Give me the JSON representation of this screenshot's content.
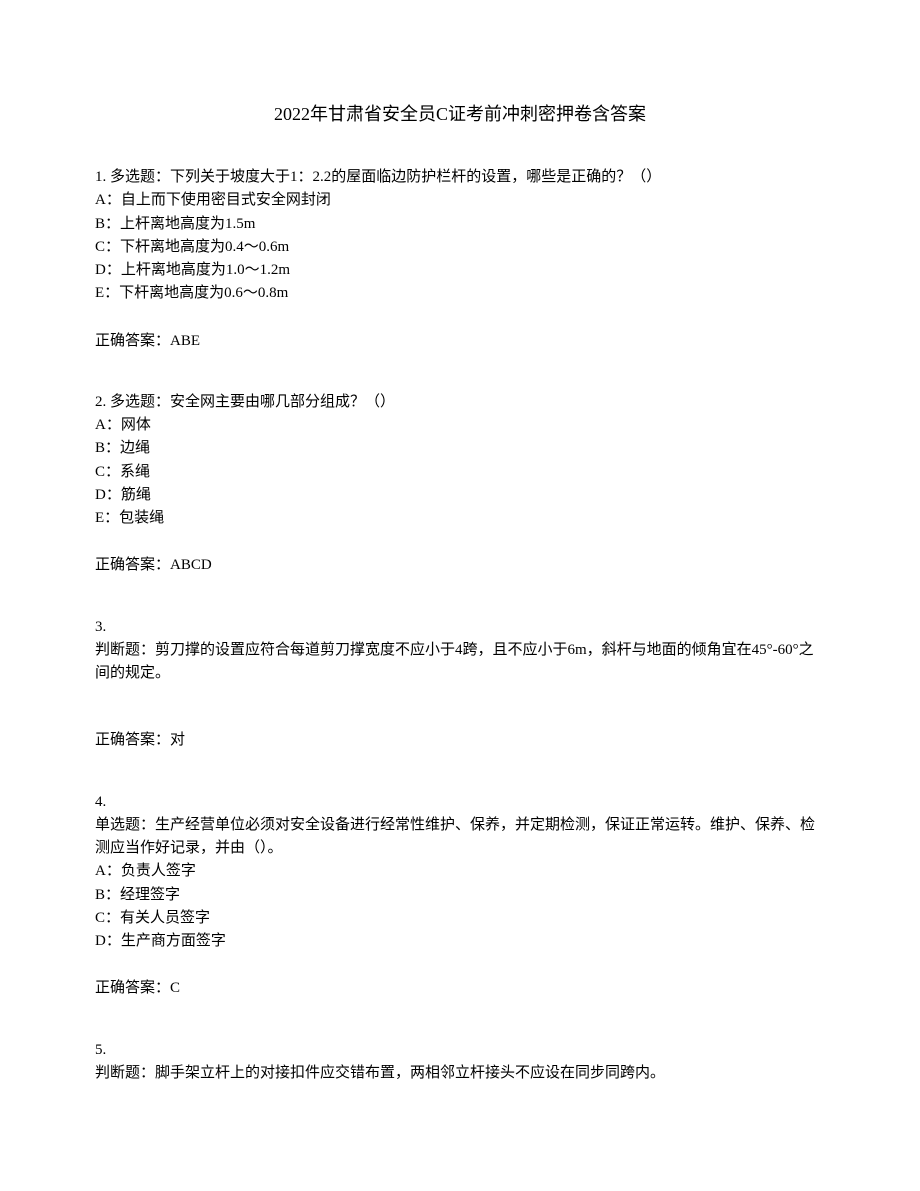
{
  "title": "2022年甘肃省安全员C证考前冲刺密押卷含答案",
  "questions": [
    {
      "number": "1.",
      "type": "多选题：",
      "text": "下列关于坡度大于1：2.2的屋面临边防护栏杆的设置，哪些是正确的？（）",
      "options": [
        "A：自上而下使用密目式安全网封闭",
        "B：上杆离地高度为1.5m",
        "C：下杆离地高度为0.4～0.6m",
        "D：上杆离地高度为1.0～1.2m",
        "E：下杆离地高度为0.6～0.8m"
      ],
      "answer_label": "正确答案：",
      "answer": "ABE"
    },
    {
      "number": "2.",
      "type": "多选题：",
      "text": "安全网主要由哪几部分组成？（）",
      "options": [
        "A：网体",
        "B：边绳",
        "C：系绳",
        "D：筋绳",
        "E：包装绳"
      ],
      "answer_label": "正确答案：",
      "answer": "ABCD"
    },
    {
      "number": "3.",
      "type": "判断题：",
      "text": "剪刀撑的设置应符合每道剪刀撑宽度不应小于4跨，且不应小于6m，斜杆与地面的倾角宜在45°-60°之间的规定。",
      "options": [],
      "answer_label": "正确答案：",
      "answer": "对"
    },
    {
      "number": "4.",
      "type": "单选题：",
      "text": "生产经营单位必须对安全设备进行经常性维护、保养，并定期检测，保证正常运转。维护、保养、检测应当作好记录，并由（）。",
      "options": [
        "A：负责人签字",
        "B：经理签字",
        "C：有关人员签字",
        "D：生产商方面签字"
      ],
      "answer_label": "正确答案：",
      "answer": "C"
    },
    {
      "number": "5.",
      "type": "判断题：",
      "text": "脚手架立杆上的对接扣件应交错布置，两相邻立杆接头不应设在同步同跨内。",
      "options": [],
      "answer_label": "",
      "answer": ""
    }
  ]
}
